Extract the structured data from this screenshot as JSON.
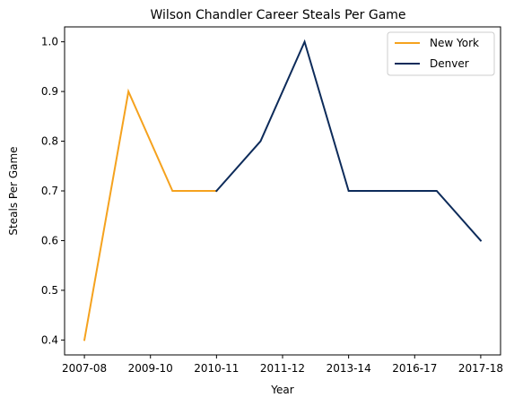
{
  "chart_data": {
    "type": "line",
    "title": "Wilson Chandler Career Steals Per Game",
    "xlabel": "Year",
    "ylabel": "Steals Per Game",
    "x_index": [
      0,
      1,
      2,
      3,
      4,
      5,
      6,
      7,
      8,
      9
    ],
    "xtick_positions": [
      0,
      1.5,
      3,
      4.5,
      6,
      7.5,
      9
    ],
    "xtick_labels": [
      "2007-08",
      "2009-10",
      "2010-11",
      "2011-12",
      "2013-14",
      "2016-17",
      "2017-18"
    ],
    "yticks": [
      0.4,
      0.5,
      0.6,
      0.7,
      0.8,
      0.9,
      1.0
    ],
    "ytick_labels": [
      "0.4",
      "0.5",
      "0.6",
      "0.7",
      "0.8",
      "0.9",
      "1.0"
    ],
    "xlim": [
      -0.45,
      9.45
    ],
    "ylim": [
      0.37,
      1.03
    ],
    "series": [
      {
        "name": "New York",
        "color": "#f5a21e",
        "x": [
          0,
          1,
          2,
          3
        ],
        "values": [
          0.4,
          0.9,
          0.7,
          0.7
        ]
      },
      {
        "name": "Denver",
        "color": "#0d2b5a",
        "x": [
          3,
          4,
          5,
          6,
          7,
          8,
          9
        ],
        "values": [
          0.7,
          0.8,
          1.0,
          0.7,
          0.7,
          0.7,
          0.6
        ]
      }
    ],
    "legend_position": "top-right"
  }
}
